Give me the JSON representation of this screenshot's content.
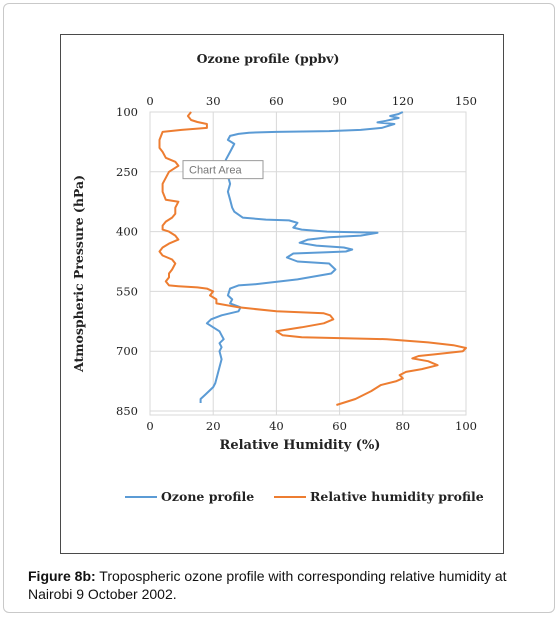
{
  "chart_data": {
    "type": "line",
    "title": "Ozone  profile (ppbv)",
    "xlabel": "Relative Humidity (%)",
    "ylabel": "Atmospheric Pressure (hPa)",
    "top_axis": {
      "range": [
        0,
        150
      ],
      "ticks": [
        "0",
        "30",
        "60",
        "90",
        "120",
        "150"
      ]
    },
    "bottom_axis": {
      "range": [
        0,
        100
      ],
      "ticks": [
        "0",
        "20",
        "40",
        "60",
        "80",
        "100"
      ]
    },
    "y_axis": {
      "range": [
        100,
        850
      ],
      "ticks": [
        "100",
        "250",
        "400",
        "550",
        "700",
        "850"
      ]
    },
    "grid": true,
    "legend_position": "bottom",
    "tooltip": "Chart Area",
    "series": [
      {
        "name": "Ozone profile",
        "axis": "top",
        "color": "#5b9bd5",
        "points": [
          [
            120,
            100
          ],
          [
            118,
            105
          ],
          [
            114,
            110
          ],
          [
            118,
            115
          ],
          [
            112,
            122
          ],
          [
            108,
            126
          ],
          [
            116,
            130
          ],
          [
            110,
            140
          ],
          [
            100,
            145
          ],
          [
            85,
            148
          ],
          [
            60,
            150
          ],
          [
            47,
            152
          ],
          [
            42,
            155
          ],
          [
            38,
            160
          ],
          [
            37,
            170
          ],
          [
            40,
            180
          ],
          [
            38,
            200
          ],
          [
            36,
            220
          ],
          [
            37,
            240
          ],
          [
            37,
            260
          ],
          [
            38,
            280
          ],
          [
            37,
            300
          ],
          [
            38,
            320
          ],
          [
            39,
            340
          ],
          [
            40,
            350
          ],
          [
            44,
            365
          ],
          [
            55,
            370
          ],
          [
            66,
            372
          ],
          [
            68,
            375
          ],
          [
            70,
            378
          ],
          [
            69,
            385
          ],
          [
            68,
            390
          ],
          [
            72,
            395
          ],
          [
            84,
            400
          ],
          [
            108,
            403
          ],
          [
            100,
            410
          ],
          [
            85,
            414
          ],
          [
            75,
            420
          ],
          [
            71,
            428
          ],
          [
            79,
            435
          ],
          [
            92,
            440
          ],
          [
            96,
            445
          ],
          [
            93,
            450
          ],
          [
            84,
            452
          ],
          [
            68,
            455
          ],
          [
            65,
            465
          ],
          [
            70,
            475
          ],
          [
            85,
            480
          ],
          [
            88,
            495
          ],
          [
            86,
            505
          ],
          [
            70,
            520
          ],
          [
            50,
            532
          ],
          [
            42,
            535
          ],
          [
            38,
            543
          ],
          [
            37,
            560
          ],
          [
            39,
            570
          ],
          [
            38,
            580
          ],
          [
            43,
            590
          ],
          [
            42,
            600
          ],
          [
            34,
            610
          ],
          [
            29,
            620
          ],
          [
            27,
            630
          ],
          [
            30,
            640
          ],
          [
            33,
            650
          ],
          [
            34,
            660
          ],
          [
            35,
            670
          ],
          [
            33,
            680
          ],
          [
            34,
            690
          ],
          [
            33,
            700
          ],
          [
            34,
            720
          ],
          [
            33,
            740
          ],
          [
            32,
            760
          ],
          [
            31,
            780
          ],
          [
            30,
            790
          ],
          [
            28,
            800
          ],
          [
            26,
            810
          ],
          [
            24,
            820
          ],
          [
            24,
            830
          ]
        ]
      },
      {
        "name": "Relative humidity profile",
        "color": "#ed7d31",
        "axis": "bottom",
        "points": [
          [
            13,
            100
          ],
          [
            12,
            110
          ],
          [
            13,
            120
          ],
          [
            15,
            125
          ],
          [
            18,
            130
          ],
          [
            18,
            140
          ],
          [
            10,
            145
          ],
          [
            4,
            150
          ],
          [
            3,
            170
          ],
          [
            3,
            190
          ],
          [
            4,
            200
          ],
          [
            5,
            215
          ],
          [
            8,
            225
          ],
          [
            9,
            235
          ],
          [
            6,
            250
          ],
          [
            5,
            265
          ],
          [
            4,
            280
          ],
          [
            4,
            300
          ],
          [
            5,
            320
          ],
          [
            9,
            325
          ],
          [
            8,
            340
          ],
          [
            8,
            355
          ],
          [
            7,
            365
          ],
          [
            5,
            375
          ],
          [
            4,
            385
          ],
          [
            4,
            395
          ],
          [
            6,
            400
          ],
          [
            8,
            410
          ],
          [
            9,
            420
          ],
          [
            6,
            430
          ],
          [
            4,
            440
          ],
          [
            3,
            450
          ],
          [
            4,
            460
          ],
          [
            7,
            470
          ],
          [
            8,
            480
          ],
          [
            7,
            495
          ],
          [
            6,
            505
          ],
          [
            6,
            515
          ],
          [
            5,
            525
          ],
          [
            6,
            535
          ],
          [
            9,
            537
          ],
          [
            15,
            540
          ],
          [
            18,
            543
          ],
          [
            20,
            550
          ],
          [
            19,
            560
          ],
          [
            21,
            570
          ],
          [
            21,
            580
          ],
          [
            28,
            590
          ],
          [
            40,
            600
          ],
          [
            55,
            605
          ],
          [
            57,
            610
          ],
          [
            58,
            620
          ],
          [
            55,
            630
          ],
          [
            48,
            640
          ],
          [
            40,
            650
          ],
          [
            42,
            660
          ],
          [
            48,
            665
          ],
          [
            75,
            670
          ],
          [
            88,
            678
          ],
          [
            96,
            685
          ],
          [
            100,
            692
          ],
          [
            99,
            700
          ],
          [
            90,
            708
          ],
          [
            85,
            712
          ],
          [
            83,
            718
          ],
          [
            88,
            725
          ],
          [
            91,
            735
          ],
          [
            86,
            745
          ],
          [
            81,
            752
          ],
          [
            79,
            760
          ],
          [
            80,
            768
          ],
          [
            78,
            775
          ],
          [
            73,
            785
          ],
          [
            70,
            800
          ],
          [
            65,
            820
          ],
          [
            59,
            835
          ]
        ]
      }
    ]
  },
  "caption": {
    "label": "Figure 8b:",
    "text": " Tropospheric ozone profile with corresponding relative humidity at Nairobi 9 October 2002."
  }
}
